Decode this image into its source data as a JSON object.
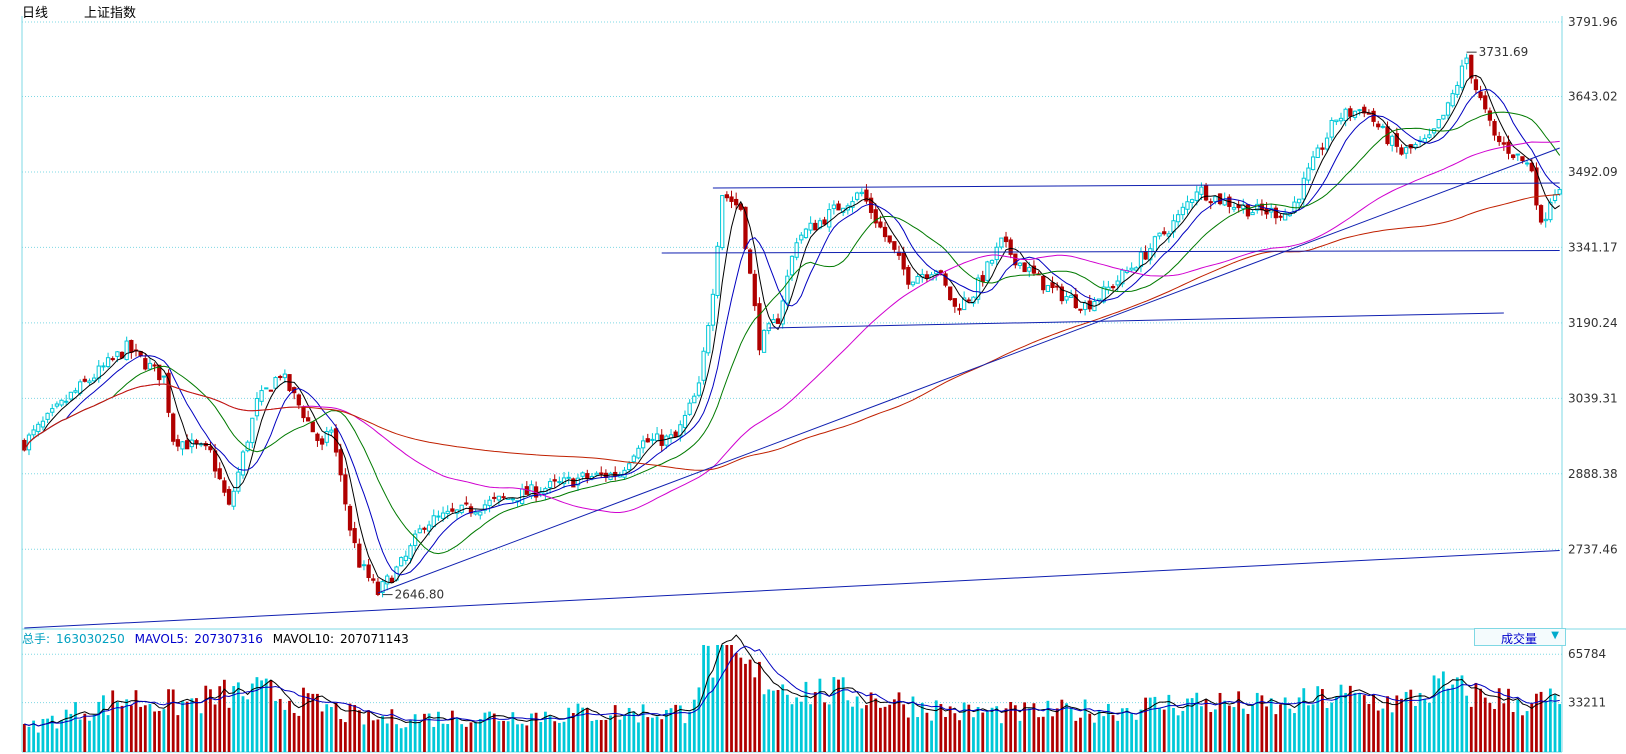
{
  "header": {
    "period": "日线",
    "index_name": "上证指数"
  },
  "volume_header": {
    "total_label": "总手:",
    "total_value": "163030250",
    "mavol5_label": "MAVOL5:",
    "mavol5_value": "207307316",
    "mavol10_label": "MAVOL10:",
    "mavol10_value": "207071143",
    "selector_label": "成交量",
    "selector_icon": "triangle-down-icon"
  },
  "colors": {
    "up": "#00c8d8",
    "down": "#b00000",
    "grid": "#7fd8e4",
    "ma5": "#000000",
    "ma10": "#0000c0",
    "ma20": "#007a00",
    "ma60": "#d000d0",
    "ma120": "#c02000",
    "trendline": "#1020b0",
    "vol_label_blue": "#0000cc",
    "vol_total": "#00a0c0"
  },
  "chart_data": {
    "type": "candlestick",
    "price_axis": {
      "ticks": [
        "3791.96",
        "3643.02",
        "3492.09",
        "3341.17",
        "3190.24",
        "3039.31",
        "2888.38",
        "2737.46"
      ],
      "range": [
        2580,
        3800
      ]
    },
    "volume_axis": {
      "ticks": [
        "65784",
        "33211"
      ],
      "range": [
        0,
        72000
      ]
    },
    "annotations": [
      {
        "label": "3731.69",
        "value": 3731.69,
        "kind": "high"
      },
      {
        "label": "2646.80",
        "value": 2646.8,
        "kind": "low"
      }
    ],
    "price_path": [
      [
        0,
        2950
      ],
      [
        10,
        3045
      ],
      [
        22,
        3140
      ],
      [
        30,
        3080
      ],
      [
        32,
        2960
      ],
      [
        40,
        2930
      ],
      [
        44,
        2820
      ],
      [
        50,
        3030
      ],
      [
        55,
        3090
      ],
      [
        60,
        3010
      ],
      [
        64,
        2940
      ],
      [
        66,
        2980
      ],
      [
        70,
        2780
      ],
      [
        72,
        2710
      ],
      [
        76,
        2650
      ],
      [
        82,
        2720
      ],
      [
        86,
        2790
      ],
      [
        100,
        2830
      ],
      [
        110,
        2855
      ],
      [
        120,
        2880
      ],
      [
        128,
        2890
      ],
      [
        132,
        2950
      ],
      [
        140,
        2960
      ],
      [
        145,
        3060
      ],
      [
        148,
        3260
      ],
      [
        150,
        3450
      ],
      [
        154,
        3420
      ],
      [
        158,
        3150
      ],
      [
        162,
        3200
      ],
      [
        166,
        3360
      ],
      [
        172,
        3400
      ],
      [
        176,
        3430
      ],
      [
        180,
        3450
      ],
      [
        184,
        3380
      ],
      [
        190,
        3280
      ],
      [
        196,
        3300
      ],
      [
        200,
        3220
      ],
      [
        204,
        3250
      ],
      [
        210,
        3350
      ],
      [
        214,
        3310
      ],
      [
        220,
        3260
      ],
      [
        228,
        3225
      ],
      [
        232,
        3250
      ],
      [
        240,
        3320
      ],
      [
        248,
        3400
      ],
      [
        252,
        3460
      ],
      [
        256,
        3440
      ],
      [
        264,
        3415
      ],
      [
        272,
        3410
      ],
      [
        276,
        3490
      ],
      [
        282,
        3600
      ],
      [
        288,
        3620
      ],
      [
        292,
        3570
      ],
      [
        296,
        3530
      ],
      [
        302,
        3555
      ],
      [
        306,
        3620
      ],
      [
        310,
        3720
      ],
      [
        312,
        3660
      ],
      [
        316,
        3560
      ],
      [
        320,
        3530
      ],
      [
        324,
        3500
      ],
      [
        326,
        3380
      ],
      [
        328,
        3440
      ],
      [
        330,
        3470
      ]
    ],
    "volume_path": [
      [
        0,
        15000
      ],
      [
        12,
        28000
      ],
      [
        22,
        36000
      ],
      [
        34,
        32000
      ],
      [
        44,
        39000
      ],
      [
        52,
        40000
      ],
      [
        62,
        32000
      ],
      [
        74,
        22000
      ],
      [
        100,
        24000
      ],
      [
        120,
        26000
      ],
      [
        142,
        27000
      ],
      [
        146,
        60000
      ],
      [
        150,
        68000
      ],
      [
        156,
        52000
      ],
      [
        166,
        42000
      ],
      [
        176,
        39000
      ],
      [
        186,
        35000
      ],
      [
        200,
        27000
      ],
      [
        214,
        26000
      ],
      [
        236,
        29000
      ],
      [
        252,
        34000
      ],
      [
        270,
        30000
      ],
      [
        282,
        38000
      ],
      [
        296,
        33000
      ],
      [
        304,
        44000
      ],
      [
        312,
        39000
      ],
      [
        322,
        33000
      ],
      [
        330,
        35000
      ]
    ],
    "trendlines": [
      {
        "name": "horizontal-top",
        "from": [
          148,
          3460
        ],
        "to": [
          330,
          3470
        ]
      },
      {
        "name": "horizontal-mid",
        "from": [
          137,
          3330
        ],
        "to": [
          330,
          3335
        ]
      },
      {
        "name": "horizontal-low",
        "from": [
          160,
          3180
        ],
        "to": [
          318,
          3210
        ]
      },
      {
        "name": "rising-support",
        "from": [
          76,
          2650
        ],
        "to": [
          330,
          3540
        ]
      },
      {
        "name": "long-term",
        "from": [
          0,
          2580
        ],
        "to": [
          330,
          2735
        ]
      }
    ],
    "moving_averages": [
      "MA5",
      "MA10",
      "MA20",
      "MA60",
      "MA120"
    ]
  }
}
